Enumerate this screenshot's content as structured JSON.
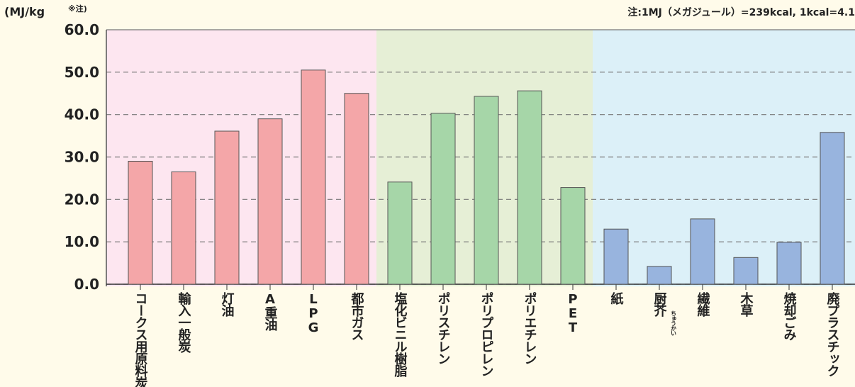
{
  "chart_data": {
    "type": "bar",
    "y_label": "(MJ/kg",
    "y_label_note": "※注)",
    "note": "注:1MJ（メガジュール）=239kcal, 1kcal=4.1",
    "annotation": "ちゅうかい",
    "categories": [
      "コークス用原料炭",
      "輸入一般炭",
      "灯油",
      "A重油",
      "LPG",
      "都市ガス",
      "塩化ビニル樹脂",
      "ポリスチレン",
      "ポリプロピレン",
      "ポリエチレン",
      "PET",
      "紙",
      "厨芥",
      "繊維",
      "木草",
      "焼却ごみ",
      "廃プラスチック"
    ],
    "values": [
      29.0,
      26.5,
      36.1,
      39.0,
      50.5,
      45.0,
      24.1,
      40.3,
      44.3,
      45.6,
      22.8,
      13.0,
      4.2,
      15.4,
      6.3,
      9.9,
      35.8
    ],
    "colors": [
      "#f4a6a8",
      "#f4a6a8",
      "#f4a6a8",
      "#f4a6a8",
      "#f4a6a8",
      "#f4a6a8",
      "#a6d6a8",
      "#a6d6a8",
      "#a6d6a8",
      "#a6d6a8",
      "#a6d6a8",
      "#98b4de",
      "#98b4de",
      "#98b4de",
      "#98b4de",
      "#98b4de",
      "#98b4de"
    ],
    "band_colors": [
      "#fde6f0",
      "#fde6f0",
      "#fde6f0",
      "#fde6f0",
      "#fde6f0",
      "#fde6f0",
      "#e6efd6",
      "#e6efd6",
      "#e6efd6",
      "#e6efd6",
      "#e6efd6",
      "#dcf0f8",
      "#dcf0f8",
      "#dcf0f8",
      "#dcf0f8",
      "#dcf0f8",
      "#dcf0f8"
    ],
    "ylim": [
      0,
      60
    ],
    "yticks": [
      {
        "value": 0,
        "label": "0.0"
      },
      {
        "value": 10,
        "label": "10.0"
      },
      {
        "value": 20,
        "label": "20.0"
      },
      {
        "value": 30,
        "label": "30.0"
      },
      {
        "value": 40,
        "label": "40.0"
      },
      {
        "value": 50,
        "label": "50.0"
      },
      {
        "value": 60,
        "label": "60.0"
      }
    ],
    "grid": true
  }
}
